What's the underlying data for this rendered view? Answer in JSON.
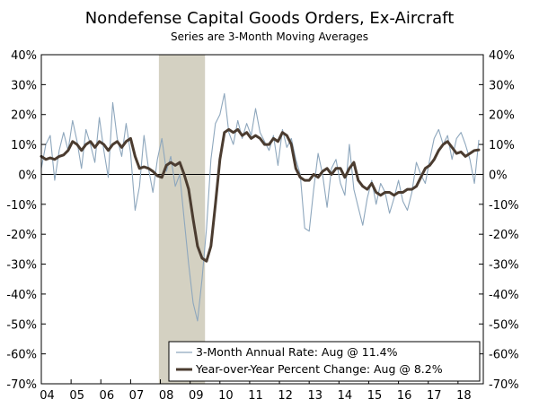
{
  "chart_data": {
    "type": "line",
    "title": "Nondefense Capital Goods Orders, Ex-Aircraft",
    "subtitle": "Series are 3-Month Moving Averages",
    "xlabel": "",
    "ylabel": "",
    "ylim": [
      -70,
      40
    ],
    "yticks": [
      40,
      30,
      20,
      10,
      0,
      -10,
      -20,
      -30,
      -40,
      -50,
      -60,
      -70
    ],
    "ytick_labels": [
      "40%",
      "30%",
      "20%",
      "10%",
      "0%",
      "-10%",
      "-20%",
      "-30%",
      "-40%",
      "-50%",
      "-60%",
      "-70%"
    ],
    "xlim": [
      2004.0,
      2018.85
    ],
    "xtick_labels": [
      "04",
      "05",
      "06",
      "07",
      "08",
      "09",
      "10",
      "11",
      "12",
      "13",
      "14",
      "15",
      "16",
      "17",
      "18"
    ],
    "recession": {
      "start": 2007.95,
      "end": 2009.5
    },
    "legend": {
      "position": "bottom-right",
      "entries": [
        "3-Month Annual Rate: Aug @ 11.4%",
        "Year-over-Year Percent Change: Aug @ 8.2%"
      ]
    },
    "colors": {
      "annual_rate": "#8ea7bd",
      "yoy": "#4b3c30",
      "recession": "#d4d1c2"
    },
    "series": [
      {
        "name": "3-Month Annual Rate",
        "x": [
          2004.0,
          2004.15,
          2004.3,
          2004.45,
          2004.6,
          2004.75,
          2004.9,
          2005.05,
          2005.2,
          2005.35,
          2005.5,
          2005.65,
          2005.8,
          2005.95,
          2006.1,
          2006.25,
          2006.4,
          2006.55,
          2006.7,
          2006.85,
          2007.0,
          2007.15,
          2007.3,
          2007.45,
          2007.6,
          2007.75,
          2007.9,
          2008.05,
          2008.2,
          2008.35,
          2008.5,
          2008.65,
          2008.8,
          2008.95,
          2009.1,
          2009.25,
          2009.4,
          2009.55,
          2009.7,
          2009.85,
          2010.0,
          2010.15,
          2010.3,
          2010.45,
          2010.6,
          2010.75,
          2010.9,
          2011.05,
          2011.2,
          2011.35,
          2011.5,
          2011.65,
          2011.8,
          2011.95,
          2012.1,
          2012.25,
          2012.4,
          2012.55,
          2012.7,
          2012.85,
          2013.0,
          2013.15,
          2013.3,
          2013.45,
          2013.6,
          2013.75,
          2013.9,
          2014.05,
          2014.2,
          2014.35,
          2014.5,
          2014.65,
          2014.8,
          2014.95,
          2015.1,
          2015.25,
          2015.4,
          2015.55,
          2015.7,
          2015.85,
          2016.0,
          2016.15,
          2016.3,
          2016.45,
          2016.6,
          2016.75,
          2016.9,
          2017.05,
          2017.2,
          2017.35,
          2017.5,
          2017.65,
          2017.8,
          2017.95,
          2018.1,
          2018.25,
          2018.4,
          2018.55,
          2018.7
        ],
        "values": [
          2,
          10,
          13,
          -2,
          8,
          14,
          8,
          18,
          11,
          2,
          15,
          10,
          4,
          19,
          8,
          -1,
          24,
          12,
          6,
          17,
          7,
          -12,
          -4,
          13,
          2,
          -6,
          5,
          12,
          1,
          6,
          -4,
          0,
          -15,
          -30,
          -43,
          -49,
          -35,
          -18,
          5,
          17,
          20,
          27,
          14,
          10,
          18,
          12,
          17,
          13,
          22,
          14,
          11,
          8,
          13,
          3,
          15,
          9,
          12,
          5,
          0,
          -18,
          -19,
          -5,
          7,
          0,
          -11,
          2,
          5,
          -3,
          -7,
          10,
          -5,
          -11,
          -17,
          -8,
          -2,
          -10,
          -3,
          -6,
          -13,
          -8,
          -2,
          -9,
          -12,
          -6,
          4,
          0,
          -3,
          5,
          12,
          15,
          10,
          13,
          5,
          12,
          14,
          10,
          5,
          -3,
          11.4
        ]
      },
      {
        "name": "Year-over-Year Percent Change",
        "x": [
          2004.0,
          2004.15,
          2004.3,
          2004.45,
          2004.6,
          2004.75,
          2004.9,
          2005.05,
          2005.2,
          2005.35,
          2005.5,
          2005.65,
          2005.8,
          2005.95,
          2006.1,
          2006.25,
          2006.4,
          2006.55,
          2006.7,
          2006.85,
          2007.0,
          2007.15,
          2007.3,
          2007.45,
          2007.6,
          2007.75,
          2007.9,
          2008.05,
          2008.2,
          2008.35,
          2008.5,
          2008.65,
          2008.8,
          2008.95,
          2009.1,
          2009.25,
          2009.4,
          2009.55,
          2009.7,
          2009.85,
          2010.0,
          2010.15,
          2010.3,
          2010.45,
          2010.6,
          2010.75,
          2010.9,
          2011.05,
          2011.2,
          2011.35,
          2011.5,
          2011.65,
          2011.8,
          2011.95,
          2012.1,
          2012.25,
          2012.4,
          2012.55,
          2012.7,
          2012.85,
          2013.0,
          2013.15,
          2013.3,
          2013.45,
          2013.6,
          2013.75,
          2013.9,
          2014.05,
          2014.2,
          2014.35,
          2014.5,
          2014.65,
          2014.8,
          2014.95,
          2015.1,
          2015.25,
          2015.4,
          2015.55,
          2015.7,
          2015.85,
          2016.0,
          2016.15,
          2016.3,
          2016.45,
          2016.6,
          2016.75,
          2016.9,
          2017.05,
          2017.2,
          2017.35,
          2017.5,
          2017.65,
          2017.8,
          2017.95,
          2018.1,
          2018.25,
          2018.4,
          2018.55,
          2018.7
        ],
        "values": [
          6,
          5,
          5.5,
          5,
          6,
          6.5,
          8,
          11,
          10,
          8,
          10,
          11,
          9,
          11,
          10,
          8,
          10,
          11,
          9,
          11,
          12,
          6,
          2,
          2.5,
          2,
          1,
          -0.5,
          -1,
          3,
          4,
          3,
          4,
          0,
          -5,
          -15,
          -24,
          -28,
          -29,
          -24,
          -10,
          5,
          14,
          15,
          14,
          15,
          13,
          14,
          12,
          13,
          12,
          10,
          10,
          12,
          11,
          14,
          13,
          10,
          2,
          -1,
          -2,
          -2,
          0,
          -1,
          1,
          2,
          0,
          2,
          2,
          -1,
          2,
          4,
          -2,
          -4,
          -5,
          -3,
          -6,
          -7,
          -6,
          -6,
          -7,
          -6,
          -6,
          -5,
          -5,
          -4,
          -1,
          2,
          3,
          5,
          8,
          10,
          11,
          9,
          7,
          7.5,
          6,
          7,
          8,
          8.2
        ]
      }
    ]
  }
}
